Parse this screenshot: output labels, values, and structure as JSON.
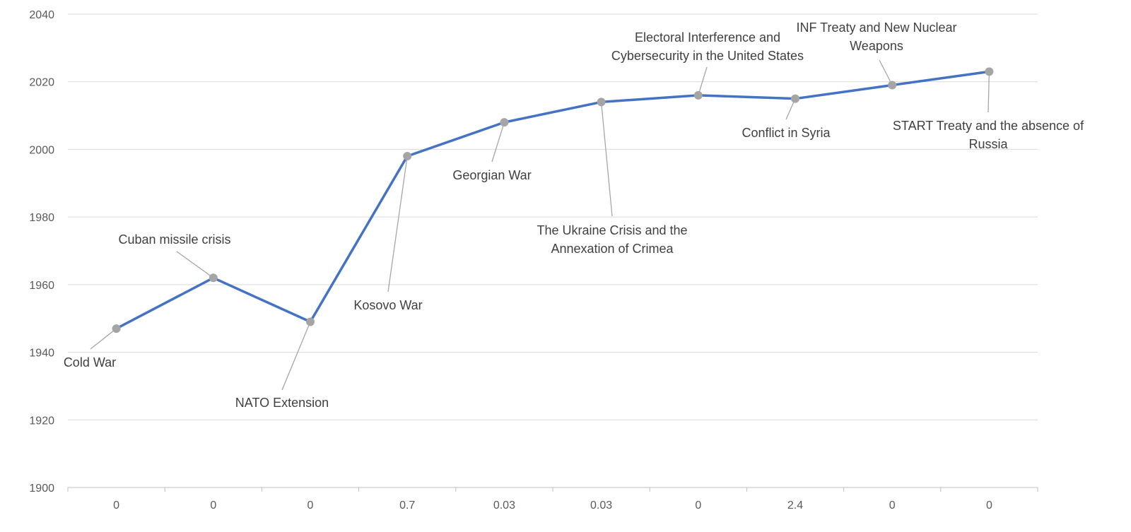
{
  "chart_data": {
    "type": "line",
    "title": "",
    "xlabel": "",
    "ylabel": "",
    "categories": [
      "0",
      "0",
      "0",
      "0.7",
      "0.03",
      "0.03",
      "0",
      "2.4",
      "0",
      "0"
    ],
    "ylim": [
      1900,
      2040
    ],
    "yticks": [
      1900,
      1920,
      1940,
      1960,
      1980,
      2000,
      2020,
      2040
    ],
    "grid": true,
    "legend": "none",
    "series": [
      {
        "values": [
          1947,
          1962,
          1949,
          1998,
          2008,
          2014,
          2016,
          2015,
          2019,
          2023
        ],
        "color": "#4472C4",
        "marker_color": "#A5A5A5"
      }
    ],
    "annotations": [
      {
        "point": 0,
        "lines": [
          "Cold War"
        ]
      },
      {
        "point": 1,
        "lines": [
          "Cuban missile crisis"
        ]
      },
      {
        "point": 2,
        "lines": [
          "NATO Extension"
        ]
      },
      {
        "point": 3,
        "lines": [
          "Kosovo War"
        ]
      },
      {
        "point": 4,
        "lines": [
          "Georgian War"
        ]
      },
      {
        "point": 5,
        "lines": [
          "The Ukraine Crisis and the",
          "Annexation of Crimea"
        ]
      },
      {
        "point": 6,
        "lines": [
          "Electoral Interference and",
          "Cybersecurity in the United States"
        ]
      },
      {
        "point": 7,
        "lines": [
          "Conflict in Syria"
        ]
      },
      {
        "point": 8,
        "lines": [
          "INF Treaty and New Nuclear",
          "Weapons"
        ]
      },
      {
        "point": 9,
        "lines": [
          "START Treaty and the absence of",
          "Russia"
        ]
      }
    ]
  }
}
